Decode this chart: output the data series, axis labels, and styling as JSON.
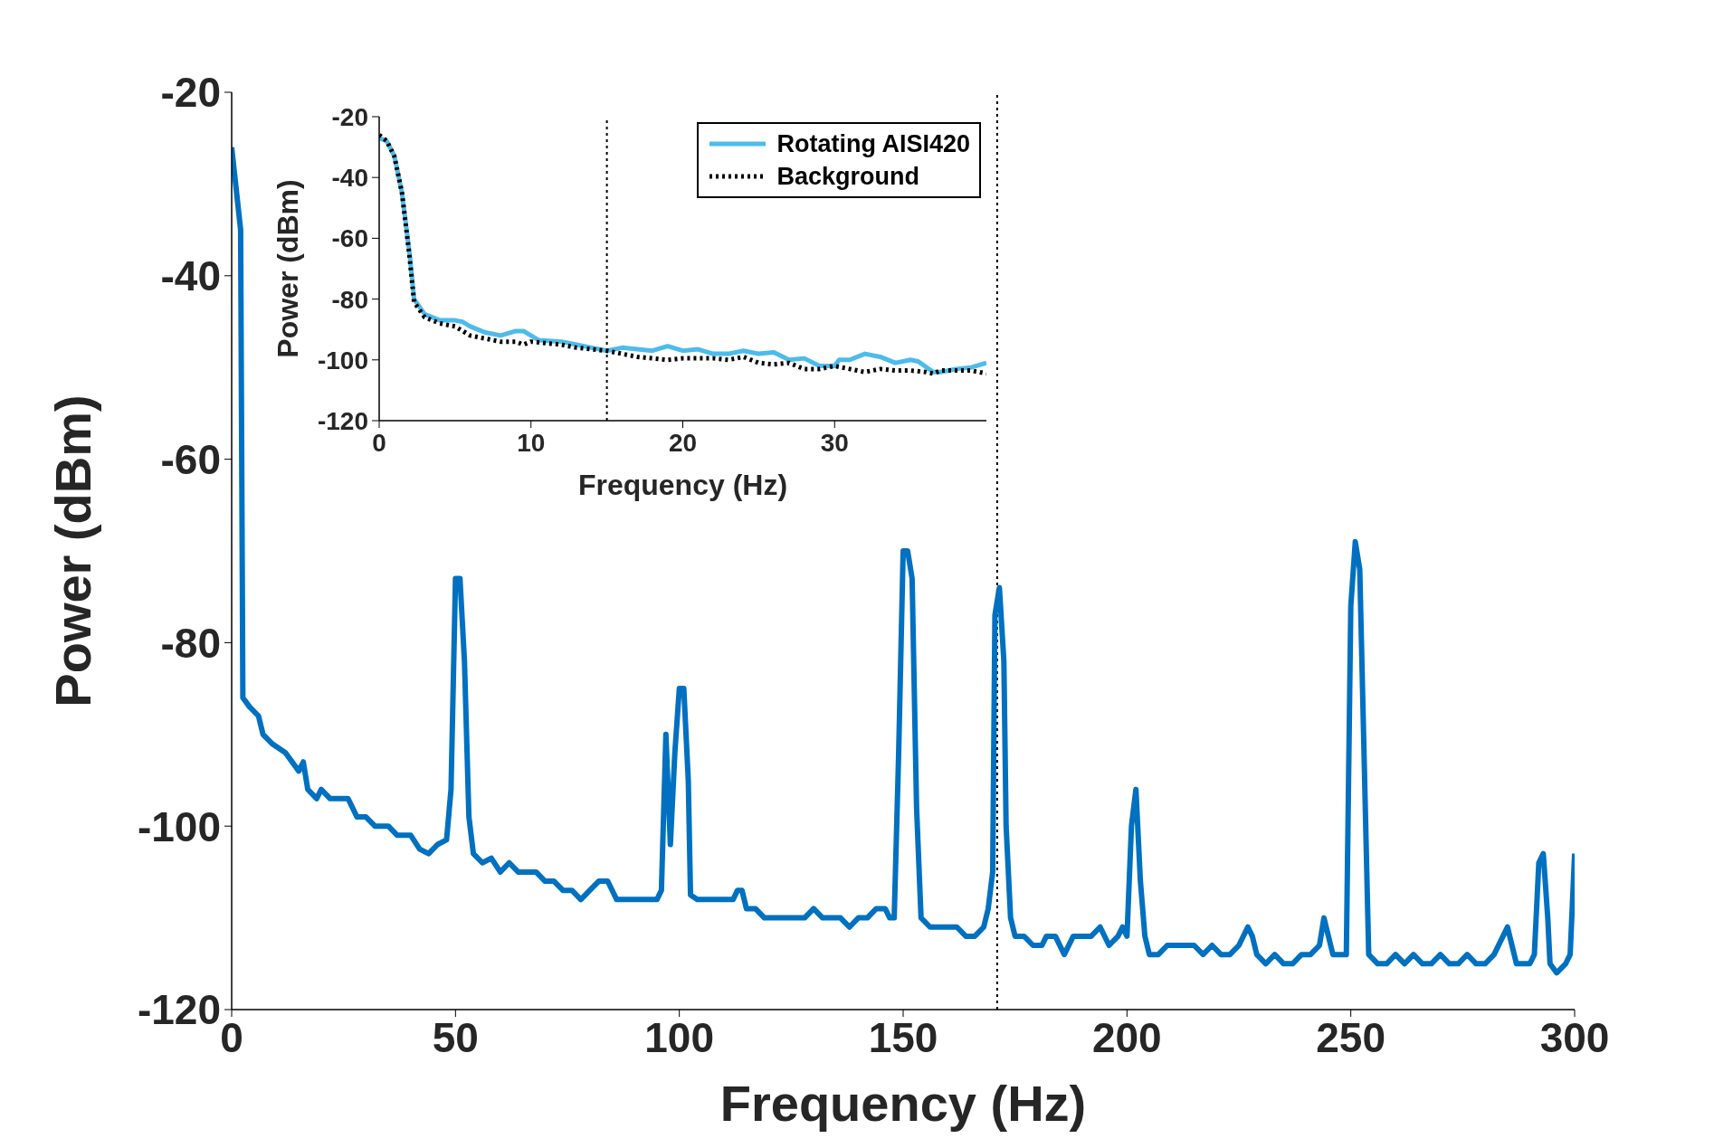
{
  "chart_data": [
    {
      "type": "line",
      "xlabel": "Frequency (Hz)",
      "ylabel": "Power (dBm)",
      "xlim": [
        0,
        300
      ],
      "xticks": [
        0,
        50,
        100,
        150,
        200,
        250,
        300
      ],
      "ylim": [
        -120,
        -20
      ],
      "yticks": [
        -120,
        -100,
        -80,
        -60,
        -40,
        -20
      ],
      "ref_lines": [
        {
          "axis": "x",
          "value": 171,
          "color": "#000000",
          "line_style": "dotted"
        }
      ],
      "series": [
        {
          "color": "#0070c0",
          "line_style": "solid",
          "x": [
            0,
            2,
            2.5,
            4,
            6,
            7,
            9,
            12,
            15,
            16,
            17,
            19,
            20,
            22,
            24,
            26,
            28,
            30,
            32,
            35,
            37,
            40,
            42,
            44,
            46,
            48,
            49,
            50,
            51,
            52,
            53,
            54,
            56,
            58,
            60,
            62,
            64,
            66,
            68,
            70,
            72,
            74,
            76,
            78,
            80,
            82,
            84,
            86,
            88,
            90,
            92,
            94,
            95,
            96,
            97,
            98,
            99,
            100,
            101,
            102,
            102.5,
            104,
            106,
            108,
            110,
            112,
            113,
            114,
            115,
            117,
            119,
            120,
            122,
            124,
            126,
            128,
            130,
            132,
            134,
            136,
            138,
            140,
            142,
            144,
            146,
            147,
            148,
            149,
            150,
            151,
            152,
            153,
            154,
            156,
            158,
            160,
            162,
            164,
            166,
            168,
            169,
            170,
            170.5,
            171.5,
            172.5,
            173,
            174,
            175,
            177,
            179,
            181,
            182,
            184,
            186,
            188,
            190,
            192,
            194,
            196,
            198,
            199,
            200,
            201,
            202,
            203,
            204,
            205,
            207,
            209,
            211,
            213,
            215,
            217,
            219,
            221,
            223,
            225,
            227,
            228,
            229,
            231,
            233,
            235,
            237,
            239,
            241,
            243,
            244,
            245,
            246,
            248,
            249,
            250,
            251,
            252,
            254,
            256,
            258,
            260,
            262,
            264,
            266,
            268,
            270,
            272,
            274,
            276,
            278,
            280,
            282,
            284,
            285,
            286,
            287,
            289,
            290,
            291,
            292,
            293,
            294,
            294.5,
            296,
            298,
            299,
            300
          ],
          "values": [
            -26,
            -35,
            -86,
            -87,
            -88,
            -90,
            -91,
            -92,
            -94,
            -93,
            -96,
            -97,
            -96,
            -97,
            -97,
            -97,
            -99,
            -99,
            -100,
            -100,
            -101,
            -101,
            -102.5,
            -103,
            -102,
            -101.5,
            -96,
            -73,
            -73,
            -82,
            -99,
            -103,
            -104,
            -103.5,
            -105,
            -104,
            -105,
            -105,
            -105,
            -106,
            -106,
            -107,
            -107,
            -108,
            -107,
            -106,
            -106,
            -108,
            -108,
            -108,
            -108,
            -108,
            -108,
            -107,
            -90,
            -102,
            -92,
            -85,
            -85,
            -95,
            -107.5,
            -108,
            -108,
            -108,
            -108,
            -108,
            -107,
            -107,
            -109,
            -109,
            -110,
            -110,
            -110,
            -110,
            -110,
            -110,
            -109,
            -110,
            -110,
            -110,
            -111,
            -110,
            -110,
            -109,
            -109,
            -110,
            -110,
            -92,
            -70,
            -70,
            -73,
            -98,
            -110,
            -111,
            -111,
            -111,
            -111,
            -112,
            -112,
            -111,
            -109,
            -105,
            -77,
            -74,
            -82,
            -100,
            -110,
            -112,
            -112,
            -113,
            -113,
            -112,
            -112,
            -114,
            -112,
            -112,
            -112,
            -111,
            -113,
            -112,
            -111,
            -112,
            -100,
            -96,
            -106,
            -112,
            -114,
            -114,
            -113,
            -113,
            -113,
            -113,
            -114,
            -113,
            -114,
            -114,
            -113,
            -111,
            -112,
            -114,
            -115,
            -114,
            -115,
            -115,
            -114,
            -114,
            -113,
            -110,
            -112,
            -114,
            -114,
            -114,
            -76,
            -69,
            -72,
            -114,
            -115,
            -115,
            -114,
            -115,
            -114,
            -115,
            -115,
            -114,
            -115,
            -115,
            -114,
            -115,
            -115,
            -114,
            -112,
            -111,
            -113,
            -115,
            -115,
            -115,
            -114,
            -104,
            -103,
            -110,
            -115,
            -116,
            -115,
            -114,
            -103
          ]
        }
      ]
    },
    {
      "type": "line",
      "xlabel": "Frequency (Hz)",
      "ylabel": "Power (dBm)",
      "xlim": [
        0,
        40
      ],
      "xticks": [
        0,
        10,
        20,
        30
      ],
      "ylim": [
        -120,
        -20
      ],
      "yticks": [
        -120,
        -100,
        -80,
        -60,
        -40,
        -20
      ],
      "legend": "top right",
      "ref_lines": [
        {
          "axis": "x",
          "value": 15,
          "color": "#000000",
          "line_style": "dotted"
        }
      ],
      "series": [
        {
          "name": "Rotating AISI420",
          "color": "#4dbbeb",
          "line_style": "solid",
          "x": [
            0,
            0.5,
            1,
            1.5,
            2,
            2.3,
            3,
            4,
            5,
            5.5,
            6,
            7,
            8,
            9,
            9.5,
            10,
            10.5,
            12,
            13,
            14,
            15,
            16,
            17,
            18,
            19,
            20,
            21,
            22,
            23,
            24,
            25,
            26,
            27,
            28,
            29,
            30,
            30.3,
            31,
            32,
            33,
            34,
            35,
            35.5,
            36.5,
            37,
            38,
            39,
            40
          ],
          "values": [
            -27,
            -28,
            -33,
            -45,
            -65,
            -80,
            -85,
            -87,
            -87,
            -87.5,
            -89,
            -91,
            -92,
            -90.5,
            -90.5,
            -92,
            -93.5,
            -94,
            -95,
            -96,
            -97,
            -96,
            -96.5,
            -97,
            -95.5,
            -97,
            -96.5,
            -98,
            -98,
            -97,
            -98,
            -97.5,
            -100,
            -99.5,
            -102,
            -102,
            -100,
            -100,
            -98,
            -99,
            -101,
            -100,
            -100.5,
            -104,
            -104,
            -103,
            -102.5,
            -101
          ]
        },
        {
          "name": "Background",
          "color": "#000000",
          "line_style": "dotted",
          "x": [
            0,
            0.5,
            1,
            1.5,
            2,
            2.3,
            3,
            4,
            5,
            6,
            7,
            8,
            9,
            9.5,
            10,
            12,
            13,
            14,
            15,
            16,
            17,
            18,
            19,
            20,
            21,
            22,
            23,
            24,
            25,
            26,
            27,
            28,
            29,
            30,
            31,
            32,
            33,
            34,
            35,
            36,
            36.5,
            37,
            38,
            39,
            40
          ],
          "values": [
            -26,
            -28,
            -33,
            -45,
            -66,
            -81,
            -86,
            -88,
            -89,
            -92,
            -93,
            -94,
            -94,
            -95,
            -94,
            -95,
            -96,
            -96.5,
            -97,
            -98,
            -99,
            -99.5,
            -100,
            -99.5,
            -99.5,
            -99.5,
            -100,
            -99,
            -101,
            -101.5,
            -101,
            -103,
            -103,
            -102,
            -103,
            -104,
            -103,
            -103.5,
            -103.5,
            -104,
            -104.5,
            -103.5,
            -103.5,
            -103.5,
            -104.5
          ]
        }
      ]
    }
  ]
}
